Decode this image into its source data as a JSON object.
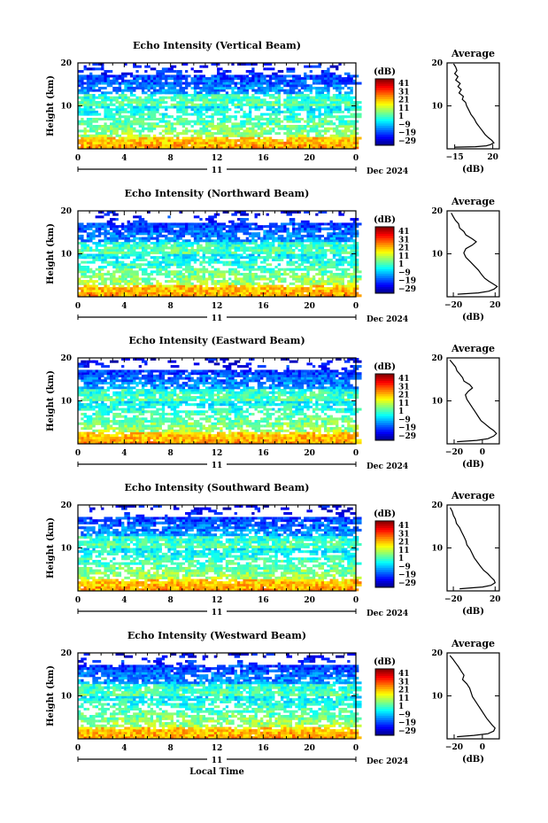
{
  "chart_data": [
    {
      "type": "heatmap",
      "title": "Echo Intensity (Vertical Beam)",
      "ylabel": "Height (km)",
      "y_ticks": [
        "20",
        "10"
      ],
      "ylim": [
        0,
        20
      ],
      "x_ticks": [
        "0",
        "4",
        "8",
        "12",
        "16",
        "20",
        "0"
      ],
      "xlim": [
        0,
        24
      ],
      "day_label": "11",
      "date_label": "Dec 2024",
      "colorbar": {
        "label": "(dB)",
        "ticks": [
          "41",
          "31",
          "21",
          "11",
          "1",
          "−9",
          "−19",
          "−29"
        ],
        "range": [
          -29,
          41
        ]
      },
      "profile": {
        "title": "Average",
        "xlabel": "(dB)",
        "x_ticks": [
          "−15",
          "20"
        ],
        "y_ticks": [
          "20",
          "10"
        ],
        "xlim": [
          -22,
          26
        ],
        "points": [
          [
            -16,
            19.8
          ],
          [
            -14,
            19
          ],
          [
            -13,
            18.2
          ],
          [
            -15,
            17.5
          ],
          [
            -12,
            16.8
          ],
          [
            -14,
            16
          ],
          [
            -10,
            15.2
          ],
          [
            -12,
            14.5
          ],
          [
            -9,
            13.8
          ],
          [
            -11,
            13
          ],
          [
            -7,
            12.2
          ],
          [
            -8,
            11.5
          ],
          [
            -5,
            10.8
          ],
          [
            -4,
            10
          ],
          [
            -2,
            9
          ],
          [
            0,
            8
          ],
          [
            3,
            7
          ],
          [
            5,
            6
          ],
          [
            8,
            5
          ],
          [
            11,
            4
          ],
          [
            13,
            3.3
          ],
          [
            16,
            2.6
          ],
          [
            19,
            2
          ],
          [
            21,
            1.4
          ],
          [
            18,
            1
          ],
          [
            14,
            0.7
          ],
          [
            4,
            0.5
          ],
          [
            -15,
            0.4
          ]
        ]
      }
    },
    {
      "type": "heatmap",
      "title": "Echo Intensity (Northward Beam)",
      "ylabel": "Height (km)",
      "y_ticks": [
        "20",
        "10"
      ],
      "ylim": [
        0,
        20
      ],
      "x_ticks": [
        "0",
        "4",
        "8",
        "12",
        "16",
        "20",
        "0"
      ],
      "xlim": [
        0,
        24
      ],
      "day_label": "11",
      "date_label": "Dec 2024",
      "colorbar": {
        "label": "(dB)",
        "ticks": [
          "41",
          "31",
          "21",
          "11",
          "1",
          "−9",
          "−19",
          "−29"
        ],
        "range": [
          -29,
          41
        ]
      },
      "profile": {
        "title": "Average",
        "xlabel": "(dB)",
        "x_ticks": [
          "−20",
          "20"
        ],
        "y_ticks": [
          "20",
          "10"
        ],
        "xlim": [
          -26,
          24
        ],
        "points": [
          [
            -22,
            19.5
          ],
          [
            -20,
            18.6
          ],
          [
            -18,
            17.8
          ],
          [
            -15,
            17
          ],
          [
            -14,
            16
          ],
          [
            -10,
            15.2
          ],
          [
            -8,
            14.4
          ],
          [
            -2,
            13.5
          ],
          [
            2,
            12.8
          ],
          [
            -2,
            12
          ],
          [
            -8,
            11.2
          ],
          [
            -10,
            10.2
          ],
          [
            -8,
            9.2
          ],
          [
            -4,
            8.2
          ],
          [
            0,
            7.2
          ],
          [
            4,
            6.2
          ],
          [
            7,
            5.2
          ],
          [
            10,
            4.3
          ],
          [
            14,
            3.6
          ],
          [
            18,
            3
          ],
          [
            22,
            2.4
          ],
          [
            19,
            1.8
          ],
          [
            14,
            1.3
          ],
          [
            4,
            0.9
          ],
          [
            -16,
            0.6
          ]
        ]
      }
    },
    {
      "type": "heatmap",
      "title": "Echo Intensity (Eastward Beam)",
      "ylabel": "Height (km)",
      "y_ticks": [
        "20",
        "10"
      ],
      "ylim": [
        0,
        20
      ],
      "x_ticks": [
        "0",
        "4",
        "8",
        "12",
        "16",
        "20",
        "0"
      ],
      "xlim": [
        0,
        24
      ],
      "day_label": "11",
      "date_label": "Dec 2024",
      "colorbar": {
        "label": "(dB)",
        "ticks": [
          "41",
          "31",
          "21",
          "11",
          "1",
          "−9",
          "−19",
          "−29"
        ],
        "range": [
          -29,
          41
        ]
      },
      "profile": {
        "title": "Average",
        "xlabel": "(dB)",
        "x_ticks": [
          "−20",
          "0"
        ],
        "y_ticks": [
          "20",
          "10"
        ],
        "xlim": [
          -25,
          12
        ],
        "points": [
          [
            -23,
            19.5
          ],
          [
            -21,
            18.7
          ],
          [
            -19,
            17.9
          ],
          [
            -18,
            17
          ],
          [
            -16,
            16.2
          ],
          [
            -14,
            15.4
          ],
          [
            -13,
            14.6
          ],
          [
            -9,
            13.8
          ],
          [
            -7,
            13
          ],
          [
            -10,
            12.2
          ],
          [
            -12,
            11.4
          ],
          [
            -11,
            10.4
          ],
          [
            -9,
            9.4
          ],
          [
            -7,
            8.4
          ],
          [
            -5,
            7.4
          ],
          [
            -3,
            6.4
          ],
          [
            -1,
            5.4
          ],
          [
            2,
            4.6
          ],
          [
            5,
            3.8
          ],
          [
            8,
            3.1
          ],
          [
            10,
            2.4
          ],
          [
            8,
            1.8
          ],
          [
            4,
            1.2
          ],
          [
            -4,
            0.8
          ],
          [
            -18,
            0.5
          ]
        ]
      }
    },
    {
      "type": "heatmap",
      "title": "Echo Intensity (Southward Beam)",
      "ylabel": "Height (km)",
      "y_ticks": [
        "20",
        "10"
      ],
      "ylim": [
        0,
        20
      ],
      "x_ticks": [
        "0",
        "4",
        "8",
        "12",
        "16",
        "20",
        "0"
      ],
      "xlim": [
        0,
        24
      ],
      "day_label": "11",
      "date_label": "Dec 2024",
      "colorbar": {
        "label": "(dB)",
        "ticks": [
          "41",
          "31",
          "21",
          "11",
          "1",
          "−9",
          "−19",
          "−29"
        ],
        "range": [
          -29,
          41
        ]
      },
      "profile": {
        "title": "Average",
        "xlabel": "(dB)",
        "x_ticks": [
          "−20",
          "20"
        ],
        "y_ticks": [
          "20",
          "10"
        ],
        "xlim": [
          -26,
          24
        ],
        "points": [
          [
            -23,
            19.4
          ],
          [
            -21,
            18.5
          ],
          [
            -20,
            17.6
          ],
          [
            -18,
            16.7
          ],
          [
            -17,
            15.7
          ],
          [
            -14,
            14.7
          ],
          [
            -12,
            13.7
          ],
          [
            -10,
            12.7
          ],
          [
            -8,
            11.7
          ],
          [
            -7,
            10.7
          ],
          [
            -4,
            9.7
          ],
          [
            -2,
            8.7
          ],
          [
            0,
            7.7
          ],
          [
            3,
            6.7
          ],
          [
            6,
            5.7
          ],
          [
            9,
            4.8
          ],
          [
            13,
            4
          ],
          [
            16,
            3.2
          ],
          [
            19,
            2.5
          ],
          [
            20,
            1.9
          ],
          [
            16,
            1.3
          ],
          [
            8,
            0.9
          ],
          [
            -14,
            0.5
          ]
        ]
      }
    },
    {
      "type": "heatmap",
      "title": "Echo Intensity (Westward Beam)",
      "ylabel": "Height (km)",
      "y_ticks": [
        "20",
        "10"
      ],
      "ylim": [
        0,
        20
      ],
      "x_ticks": [
        "0",
        "4",
        "8",
        "12",
        "16",
        "20",
        "0"
      ],
      "xlim": [
        0,
        24
      ],
      "xlabel": "Local Time",
      "day_label": "11",
      "date_label": "Dec 2024",
      "colorbar": {
        "label": "(dB)",
        "ticks": [
          "41",
          "31",
          "21",
          "11",
          "1",
          "−9",
          "−19",
          "−29"
        ],
        "range": [
          -29,
          41
        ]
      },
      "profile": {
        "title": "Average",
        "xlabel": "(dB)",
        "x_ticks": [
          "−20",
          "0"
        ],
        "y_ticks": [
          "20",
          "10"
        ],
        "xlim": [
          -25,
          12
        ],
        "points": [
          [
            -23,
            19.4
          ],
          [
            -21,
            18.6
          ],
          [
            -19,
            17.7
          ],
          [
            -17,
            16.8
          ],
          [
            -15,
            15.8
          ],
          [
            -13,
            14.8
          ],
          [
            -14,
            13.8
          ],
          [
            -11,
            12.8
          ],
          [
            -9,
            11.8
          ],
          [
            -8,
            10.8
          ],
          [
            -7,
            9.8
          ],
          [
            -5,
            8.8
          ],
          [
            -3,
            7.8
          ],
          [
            -1,
            6.8
          ],
          [
            1,
            5.8
          ],
          [
            3,
            4.8
          ],
          [
            5,
            4
          ],
          [
            7,
            3.2
          ],
          [
            9,
            2.5
          ],
          [
            8,
            1.8
          ],
          [
            4,
            1.2
          ],
          [
            -6,
            0.8
          ],
          [
            -18,
            0.5
          ]
        ]
      }
    }
  ]
}
